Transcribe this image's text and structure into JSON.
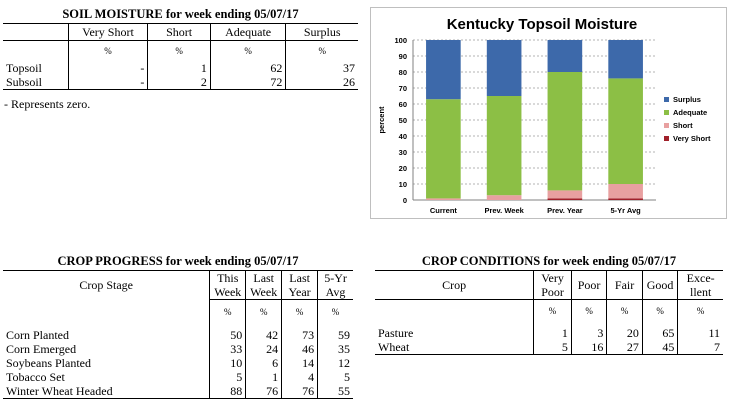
{
  "soil_moisture": {
    "title": "SOIL MOISTURE for week ending 05/07/17",
    "headers": [
      "Very Short",
      "Short",
      "Adequate",
      "Surplus"
    ],
    "unit": "%",
    "rows": [
      {
        "label": "Topsoil",
        "values": [
          "-",
          "1",
          "62",
          "37"
        ]
      },
      {
        "label": "Subsoil",
        "values": [
          "-",
          "2",
          "72",
          "26"
        ]
      }
    ],
    "note": "- Represents zero."
  },
  "chart_data": {
    "type": "bar",
    "stacked": true,
    "title": "Kentucky Topsoil Moisture",
    "ylabel": "percent",
    "xlabel": "",
    "ylim": [
      0,
      100
    ],
    "yticks": [
      0,
      10,
      20,
      30,
      40,
      50,
      60,
      70,
      80,
      90,
      100
    ],
    "categories": [
      "Current",
      "Prev. Week",
      "Prev. Year",
      "5-Yr Avg"
    ],
    "series": [
      {
        "name": "Very Short",
        "color": "#a0202a",
        "values": [
          0,
          0,
          1,
          1
        ]
      },
      {
        "name": "Short",
        "color": "#e8a0a0",
        "values": [
          1,
          3,
          5,
          9
        ]
      },
      {
        "name": "Adequate",
        "color": "#8cbf45",
        "values": [
          62,
          62,
          74,
          66
        ]
      },
      {
        "name": "Surplus",
        "color": "#3d69aa",
        "values": [
          37,
          35,
          20,
          24
        ]
      }
    ],
    "legend_order": [
      "Surplus",
      "Adequate",
      "Short",
      "Very Short"
    ],
    "legend_position": "right",
    "grid": true
  },
  "crop_progress": {
    "title": "CROP PROGRESS for week ending 05/07/17",
    "stage_header": "Crop Stage",
    "headers": [
      [
        "This",
        "Week"
      ],
      [
        "Last",
        "Week"
      ],
      [
        "Last",
        "Year"
      ],
      [
        "5-Yr",
        "Avg"
      ]
    ],
    "unit": "%",
    "rows": [
      {
        "label": "Corn Planted",
        "values": [
          "50",
          "42",
          "73",
          "59"
        ]
      },
      {
        "label": "Corn Emerged",
        "values": [
          "33",
          "24",
          "46",
          "35"
        ]
      },
      {
        "label": "Soybeans Planted",
        "values": [
          "10",
          "6",
          "14",
          "12"
        ]
      },
      {
        "label": "Tobacco Set",
        "values": [
          "5",
          "1",
          "4",
          "5"
        ]
      },
      {
        "label": "Winter Wheat Headed",
        "values": [
          "88",
          "76",
          "76",
          "55"
        ]
      }
    ]
  },
  "crop_conditions": {
    "title": "CROP CONDITIONS for week ending 05/07/17",
    "crop_header": "Crop",
    "headers": [
      [
        "Very",
        "Poor"
      ],
      [
        "Poor",
        ""
      ],
      [
        "Fair",
        ""
      ],
      [
        "Good",
        ""
      ],
      [
        "Exce-",
        "llent"
      ]
    ],
    "unit": "%",
    "rows": [
      {
        "label": "Pasture",
        "values": [
          "1",
          "3",
          "20",
          "65",
          "11"
        ]
      },
      {
        "label": "Wheat",
        "values": [
          "5",
          "16",
          "27",
          "45",
          "7"
        ]
      }
    ]
  }
}
